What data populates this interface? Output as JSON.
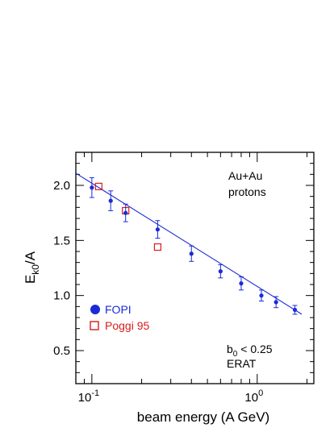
{
  "chart_data": {
    "type": "scatter",
    "x_scale": "log",
    "xlim": [
      0.08,
      2.2
    ],
    "ylim": [
      0.2,
      2.3
    ],
    "xlabel": "beam energy (A GeV)",
    "ylabel_main": "E",
    "ylabel_sub": "k0",
    "ylabel_tail": "/A",
    "xticks_major": [
      {
        "value": 0.1,
        "base": "10",
        "exp": "-1"
      },
      {
        "value": 1.0,
        "base": "10",
        "exp": "0"
      }
    ],
    "yticks": [
      {
        "value": 0.5,
        "label": "0.5"
      },
      {
        "value": 1.0,
        "label": "1.0"
      },
      {
        "value": 1.5,
        "label": "1.5"
      },
      {
        "value": 2.0,
        "label": "2.0"
      }
    ],
    "annotations": {
      "system_line1": "Au+Au",
      "system_line2": "protons",
      "cut_base": "b",
      "cut_sub": "0",
      "cut_tail": " < 0.25",
      "cut_line2": "ERAT"
    },
    "fit_line": {
      "color": "#1a2bd6",
      "points": [
        {
          "x": 0.08,
          "y": 2.11
        },
        {
          "x": 1.86,
          "y": 0.83
        }
      ]
    },
    "series": [
      {
        "name": "FOPI",
        "marker": "filled-circle",
        "color": "#1a2bd6",
        "points": [
          {
            "x": 0.1,
            "y": 1.98,
            "err": 0.09
          },
          {
            "x": 0.13,
            "y": 1.86,
            "err": 0.09
          },
          {
            "x": 0.16,
            "y": 1.75,
            "err": 0.08
          },
          {
            "x": 0.25,
            "y": 1.6,
            "err": 0.08
          },
          {
            "x": 0.4,
            "y": 1.38,
            "err": 0.07
          },
          {
            "x": 0.6,
            "y": 1.22,
            "err": 0.06
          },
          {
            "x": 0.8,
            "y": 1.11,
            "err": 0.06
          },
          {
            "x": 1.06,
            "y": 1.0,
            "err": 0.05
          },
          {
            "x": 1.3,
            "y": 0.94,
            "err": 0.05
          },
          {
            "x": 1.69,
            "y": 0.87,
            "err": 0.04
          }
        ]
      },
      {
        "name": "Poggi 95",
        "marker": "open-square",
        "color": "#d81c1c",
        "points": [
          {
            "x": 0.11,
            "y": 1.99
          },
          {
            "x": 0.16,
            "y": 1.77
          },
          {
            "x": 0.25,
            "y": 1.44
          }
        ]
      }
    ],
    "legend_position": "lower-left"
  }
}
